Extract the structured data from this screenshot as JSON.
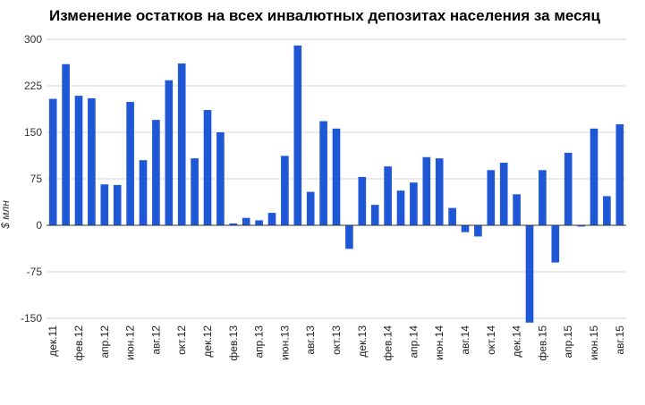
{
  "chart_data": {
    "type": "bar",
    "title": "Изменение остатков на всех инвалютных депозитах населения за месяц",
    "xlabel": "",
    "ylabel": "$ млн",
    "ylim": [
      -150,
      300
    ],
    "yticks": [
      300,
      225,
      150,
      75,
      0,
      -75,
      -150
    ],
    "grid": true,
    "legend": "none",
    "bar_color": "#1f57d6",
    "categories": [
      "дек.11",
      "янв.12",
      "фев.12",
      "мар.12",
      "апр.12",
      "май.12",
      "июн.12",
      "июл.12",
      "авг.12",
      "сен.12",
      "окт.12",
      "ноя.12",
      "дек.12",
      "янв.13",
      "фев.13",
      "мар.13",
      "апр.13",
      "май.13",
      "июн.13",
      "июл.13",
      "авг.13",
      "сен.13",
      "окт.13",
      "ноя.13",
      "дек.13",
      "янв.14",
      "фев.14",
      "мар.14",
      "апр.14",
      "май.14",
      "июн.14",
      "июл.14",
      "авг.14",
      "сен.14",
      "окт.14",
      "ноя.14",
      "дек.14",
      "янв.15",
      "фев.15",
      "мар.15",
      "апр.15",
      "май.15",
      "июн.15",
      "июл.15",
      "авг.15"
    ],
    "tick_labels": [
      "дек.11",
      "фев.12",
      "апр.12",
      "июн.12",
      "авг.12",
      "окт.12",
      "дек.12",
      "фев.13",
      "апр.13",
      "июн.13",
      "авг.13",
      "окт.13",
      "дек.13",
      "фев.14",
      "апр.14",
      "июн.14",
      "авг.14",
      "окт.14",
      "дек.14",
      "фев.15",
      "апр.15",
      "июн.15",
      "авг.15"
    ],
    "values": [
      204,
      260,
      209,
      205,
      66,
      65,
      199,
      105,
      170,
      234,
      261,
      108,
      186,
      150,
      3,
      12,
      8,
      20,
      112,
      290,
      54,
      168,
      156,
      -38,
      78,
      33,
      95,
      56,
      69,
      110,
      108,
      28,
      -11,
      -18,
      89,
      101,
      50,
      -157,
      89,
      -60,
      117,
      -2,
      156,
      47,
      163
    ]
  }
}
